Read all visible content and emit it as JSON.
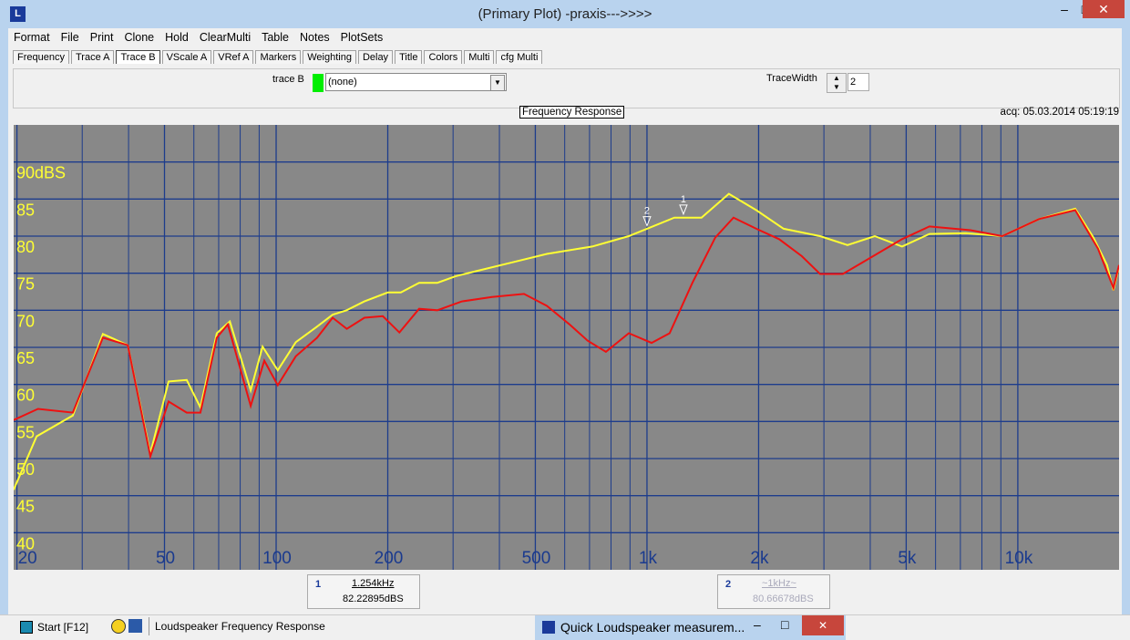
{
  "window": {
    "title": "(Primary Plot) -praxis--->>>>"
  },
  "menu": [
    "Format",
    "File",
    "Print",
    "Clone",
    "Hold",
    "ClearMulti",
    "Table",
    "Notes",
    "PlotSets"
  ],
  "tabs": [
    "Frequency",
    "Trace A",
    "Trace B",
    "VScale A",
    "VRef A",
    "Markers",
    "Weighting",
    "Delay",
    "Title",
    "Colors",
    "Multi",
    "cfg Multi"
  ],
  "controls": {
    "trace_label": "trace B",
    "trace_select": "(none)",
    "width_label": "TraceWidth",
    "width_value": "2"
  },
  "chart_data": {
    "type": "line",
    "title": "Frequency Response",
    "subtitle": "acq: 05.03.2014 05:19:19",
    "log_x": true,
    "grid": true,
    "xlim": [
      19.6,
      18750
    ],
    "ylim": [
      35,
      95
    ],
    "xticks": [
      20,
      50,
      100,
      200,
      500,
      {
        "value": 1000,
        "label": "1k"
      },
      {
        "value": 2000,
        "label": "2k"
      },
      {
        "value": 5000,
        "label": "5k"
      },
      {
        "value": 10000,
        "label": "10k"
      }
    ],
    "xminor": [
      30,
      40,
      60,
      70,
      80,
      90,
      300,
      400,
      600,
      700,
      800,
      900,
      3000,
      4000,
      6000,
      7000,
      8000,
      9000
    ],
    "yticks": [
      {
        "value": 90,
        "label": "90dBS"
      },
      85,
      80,
      75,
      70,
      65,
      60,
      55,
      50,
      45,
      40
    ],
    "series": [
      {
        "color": "#ffff33",
        "x": [
          19.6,
          22.6,
          28.3,
          34.1,
          39.8,
          45.8,
          51.3,
          57.4,
          62.5,
          69.2,
          75.0,
          85.4,
          91.9,
          101,
          113,
          129,
          142,
          155,
          173,
          200,
          217,
          243,
          272,
          305,
          361,
          428,
          537,
          712,
          893,
          1000,
          1185,
          1403,
          1663,
          1971,
          2336,
          2930,
          3473,
          4113,
          4874,
          5777,
          7244,
          9080,
          11400,
          14280,
          15990,
          17400,
          18100,
          18750
        ],
        "values": [
          45.8,
          53.0,
          55.8,
          66.8,
          65.3,
          50.7,
          60.4,
          60.6,
          56.9,
          66.9,
          68.5,
          59.2,
          65.1,
          61.9,
          65.7,
          67.8,
          69.4,
          70.0,
          71.2,
          72.4,
          72.4,
          73.7,
          73.7,
          74.6,
          75.5,
          76.4,
          77.6,
          78.6,
          80.0,
          81.0,
          82.5,
          82.5,
          85.7,
          83.5,
          81.0,
          80.0,
          78.8,
          80.0,
          78.6,
          80.3,
          80.4,
          80.0,
          82.3,
          83.7,
          79.8,
          76.1,
          72.7,
          75.9
        ]
      },
      {
        "color": "#ee1111",
        "x": [
          19.6,
          22.8,
          28.3,
          34.1,
          39.8,
          45.8,
          51.3,
          57.4,
          62.5,
          69.2,
          74.1,
          85.4,
          92.9,
          101,
          113,
          129,
          142,
          155,
          173,
          194,
          215,
          243,
          272,
          317,
          382,
          466,
          537,
          618,
          692,
          775,
          893,
          1029,
          1151,
          1326,
          1528,
          1711,
          1971,
          2271,
          2616,
          2930,
          3375,
          3890,
          4874,
          5777,
          7450,
          9080,
          11400,
          14280,
          16450,
          18100,
          18750
        ],
        "values": [
          55.2,
          56.7,
          56.2,
          66.3,
          65.3,
          50.3,
          57.7,
          56.2,
          56.2,
          66.3,
          68.1,
          57.1,
          63.2,
          59.9,
          63.8,
          66.3,
          69.0,
          67.5,
          69.0,
          69.2,
          67.0,
          70.2,
          70.0,
          71.2,
          71.8,
          72.2,
          70.6,
          68.1,
          65.9,
          64.4,
          66.9,
          65.6,
          66.9,
          73.7,
          79.8,
          82.5,
          81.0,
          79.6,
          77.3,
          74.9,
          74.9,
          76.7,
          79.6,
          81.3,
          80.8,
          80.0,
          82.3,
          83.5,
          78.3,
          73.0,
          76.1
        ]
      }
    ],
    "markers": [
      {
        "label": "1",
        "x": {
          "value": 1254,
          "label": "1.254kHz"
        },
        "y": {
          "value": 82.22895,
          "label": "82.22895dBS"
        }
      },
      {
        "label": "2",
        "x": {
          "value": 1000,
          "label": "~1kHz~"
        },
        "y": {
          "value": 80.66678,
          "label": "80.66678dBS"
        }
      }
    ]
  },
  "taskbar": {
    "start": "Start [F12]",
    "task": "Loudspeaker Frequency Response",
    "popup": "Quick Loudspeaker measurem..."
  }
}
